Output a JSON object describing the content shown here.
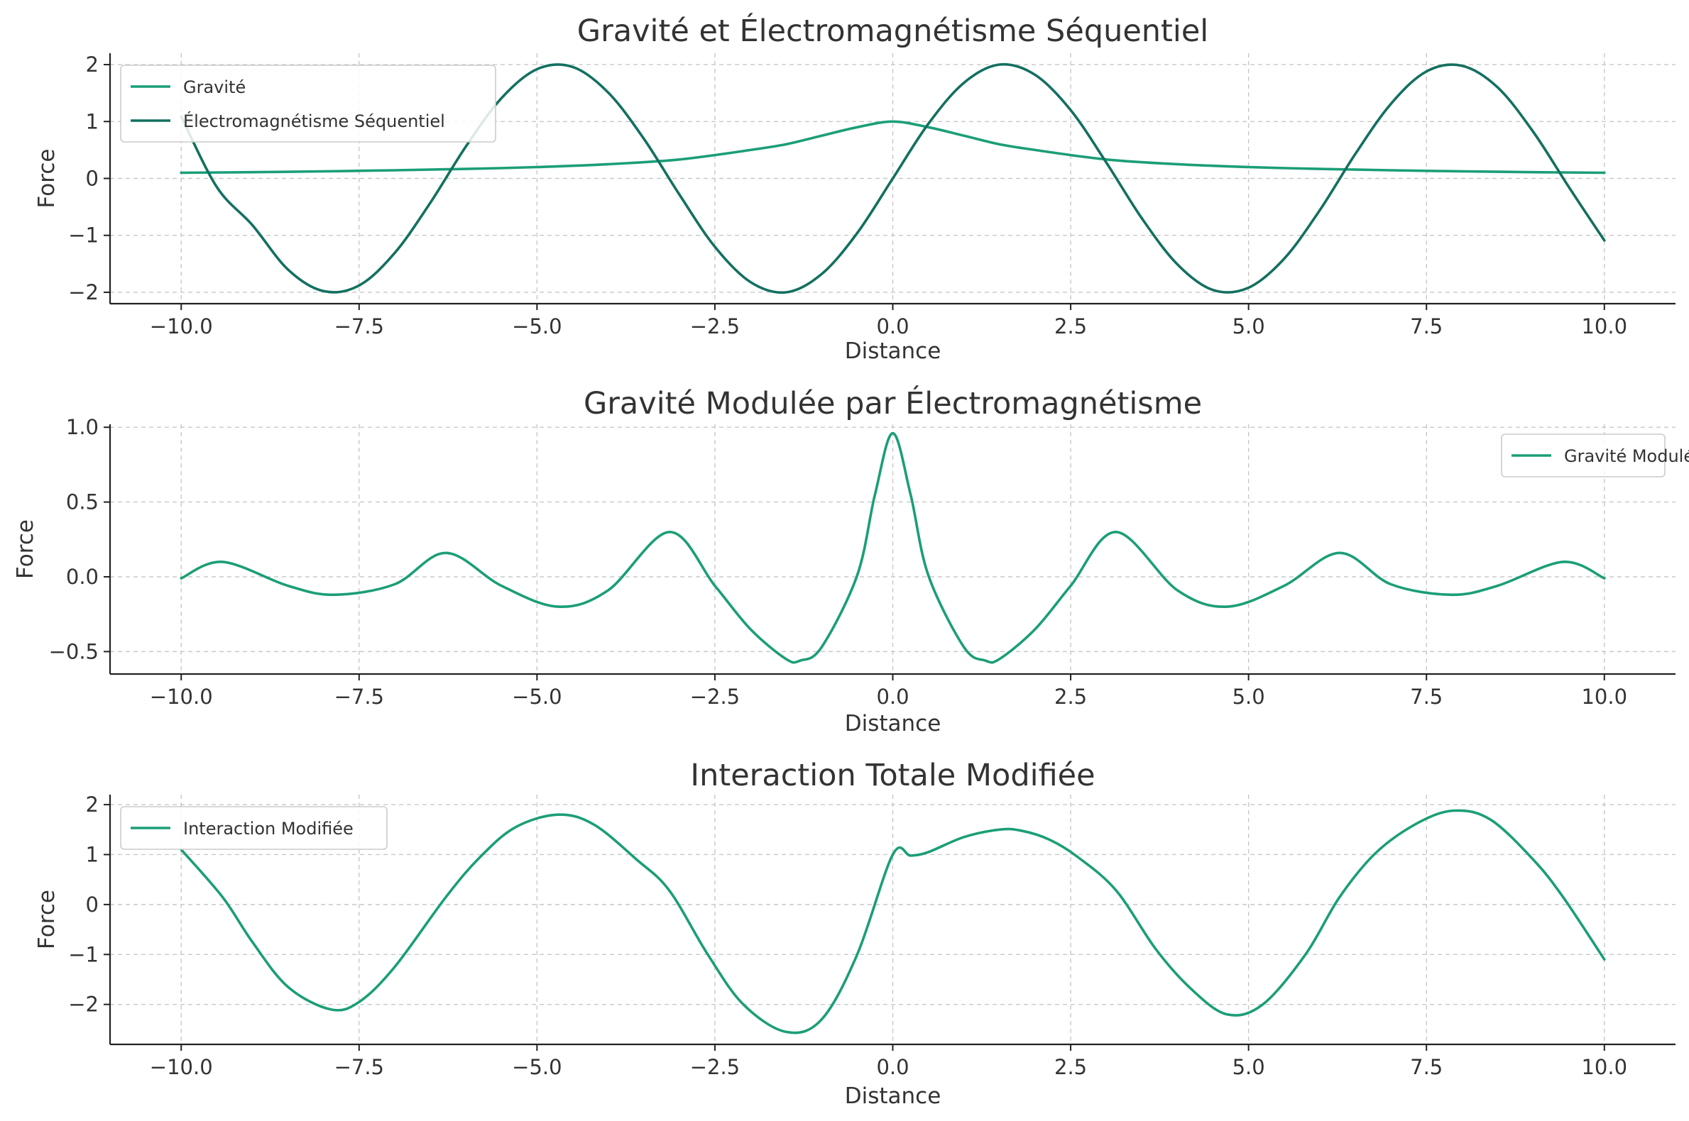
{
  "chart_data": [
    {
      "type": "line",
      "title": "Gravité et Électromagnétisme Séquentiel",
      "xlabel": "Distance",
      "ylabel": "Force",
      "xlim": [
        -11,
        11
      ],
      "ylim": [
        -2.2,
        2.2
      ],
      "xticks": [
        -10,
        -7.5,
        -5,
        -2.5,
        0,
        2.5,
        5,
        7.5,
        10
      ],
      "xtick_labels": [
        "−10.0",
        "−7.5",
        "−5.0",
        "−2.5",
        "0.0",
        "2.5",
        "5.0",
        "7.5",
        "10.0"
      ],
      "yticks": [
        -2,
        -1,
        0,
        1,
        2
      ],
      "ytick_labels": [
        "−2",
        "−1",
        "0",
        "1",
        "2"
      ],
      "grid": true,
      "legend_position": "top-left",
      "series": [
        {
          "name": "Gravité",
          "color": "#1b9e77",
          "x": [
            -10,
            -9,
            -8,
            -7,
            -6,
            -5,
            -4,
            -3,
            -2,
            -1.5,
            -1,
            -0.5,
            0,
            0.5,
            1,
            1.5,
            2,
            3,
            4,
            5,
            6,
            7,
            8,
            9,
            10
          ],
          "y": [
            0.1,
            0.11,
            0.125,
            0.143,
            0.167,
            0.2,
            0.25,
            0.333,
            0.5,
            0.6,
            0.75,
            0.9,
            1.0,
            0.9,
            0.75,
            0.6,
            0.5,
            0.333,
            0.25,
            0.2,
            0.167,
            0.143,
            0.125,
            0.11,
            0.1
          ]
        },
        {
          "name": "Électromagnétisme Séquentiel",
          "color": "#137060",
          "x": [
            -10,
            -9.5,
            -9,
            -8.5,
            -8,
            -7.5,
            -7,
            -6.5,
            -6,
            -5.5,
            -5,
            -4.5,
            -4,
            -3.5,
            -3,
            -2.5,
            -2,
            -1.5,
            -1,
            -0.5,
            0,
            0.5,
            1,
            1.5,
            2,
            2.5,
            3,
            3.5,
            4,
            4.5,
            5,
            5.5,
            6,
            6.5,
            7,
            7.5,
            8,
            8.5,
            9,
            9.5,
            10
          ],
          "y": [
            1.09,
            -0.15,
            -0.82,
            -1.6,
            -1.98,
            -1.88,
            -1.31,
            -0.43,
            0.56,
            1.41,
            1.92,
            1.96,
            1.51,
            0.7,
            -0.28,
            -1.2,
            -1.82,
            -2.0,
            -1.68,
            -0.96,
            0.0,
            0.96,
            1.68,
            2.0,
            1.82,
            1.2,
            0.28,
            -0.7,
            -1.51,
            -1.96,
            -1.92,
            -1.41,
            -0.56,
            0.43,
            1.31,
            1.88,
            1.98,
            1.6,
            0.82,
            -0.15,
            -1.09
          ]
        }
      ]
    },
    {
      "type": "line",
      "title": "Gravité Modulée par Électromagnétisme",
      "xlabel": "Distance",
      "ylabel": "Force",
      "xlim": [
        -11,
        11
      ],
      "ylim": [
        -0.65,
        1.02
      ],
      "xticks": [
        -10,
        -7.5,
        -5,
        -2.5,
        0,
        2.5,
        5,
        7.5,
        10
      ],
      "xtick_labels": [
        "−10.0",
        "−7.5",
        "−5.0",
        "−2.5",
        "0.0",
        "2.5",
        "5.0",
        "7.5",
        "10.0"
      ],
      "yticks": [
        -0.5,
        0,
        0.5,
        1.0
      ],
      "ytick_labels": [
        "−0.5",
        "0.0",
        "0.5",
        "1.0"
      ],
      "grid": true,
      "legend_position": "top-right",
      "series": [
        {
          "name": "Gravité Modulée",
          "color": "#1b9e77",
          "x": [
            -10,
            -9.42,
            -8.5,
            -7.85,
            -7,
            -6.28,
            -5.5,
            -4.7,
            -4,
            -3.14,
            -2.5,
            -2,
            -1.5,
            -1.3,
            -1,
            -0.5,
            -0.25,
            0,
            0.25,
            0.5,
            1,
            1.3,
            1.5,
            2,
            2.5,
            3.14,
            4,
            4.7,
            5.5,
            6.28,
            7,
            7.85,
            8.5,
            9.42,
            10
          ],
          "y": [
            -0.01,
            0.1,
            -0.06,
            -0.12,
            -0.05,
            0.16,
            -0.06,
            -0.2,
            -0.09,
            0.3,
            -0.06,
            -0.35,
            -0.55,
            -0.56,
            -0.47,
            0.01,
            0.55,
            0.96,
            0.55,
            0.01,
            -0.47,
            -0.56,
            -0.55,
            -0.35,
            -0.06,
            0.3,
            -0.09,
            -0.2,
            -0.06,
            0.16,
            -0.05,
            -0.12,
            -0.06,
            0.1,
            -0.01
          ]
        }
      ]
    },
    {
      "type": "line",
      "title": "Interaction Totale Modifiée",
      "xlabel": "Distance",
      "ylabel": "Force",
      "xlim": [
        -11,
        11
      ],
      "ylim": [
        -2.8,
        2.2
      ],
      "xticks": [
        -10,
        -7.5,
        -5,
        -2.5,
        0,
        2.5,
        5,
        7.5,
        10
      ],
      "xtick_labels": [
        "−10.0",
        "−7.5",
        "−5.0",
        "−2.5",
        "0.0",
        "2.5",
        "5.0",
        "7.5",
        "10.0"
      ],
      "yticks": [
        -2,
        -1,
        0,
        1,
        2
      ],
      "ytick_labels": [
        "−2",
        "−1",
        "0",
        "1",
        "2"
      ],
      "grid": true,
      "legend_position": "top-left",
      "series": [
        {
          "name": "Interaction Modifiée",
          "color": "#1b9e77",
          "x": [
            -10,
            -9.42,
            -9,
            -8.5,
            -7.9,
            -7.5,
            -7,
            -6.28,
            -5.8,
            -5.3,
            -4.7,
            -4.2,
            -3.6,
            -3.14,
            -2.6,
            -2.1,
            -1.5,
            -1.0,
            -0.5,
            0,
            0.25,
            0.5,
            1,
            1.5,
            1.8,
            2.2,
            2.6,
            3.14,
            3.7,
            4.2,
            4.7,
            5.2,
            5.8,
            6.28,
            6.8,
            7.4,
            7.9,
            8.4,
            9,
            9.42,
            10
          ],
          "y": [
            1.1,
            0.15,
            -0.75,
            -1.65,
            -2.1,
            -1.95,
            -1.25,
            0.15,
            0.95,
            1.55,
            1.8,
            1.6,
            0.9,
            0.28,
            -1.0,
            -2.0,
            -2.55,
            -2.3,
            -1.0,
            1.0,
            0.98,
            1.05,
            1.35,
            1.5,
            1.48,
            1.3,
            0.95,
            0.28,
            -0.9,
            -1.7,
            -2.2,
            -2.0,
            -1.0,
            0.15,
            1.05,
            1.65,
            1.88,
            1.7,
            0.9,
            0.15,
            -1.1
          ]
        }
      ]
    }
  ]
}
